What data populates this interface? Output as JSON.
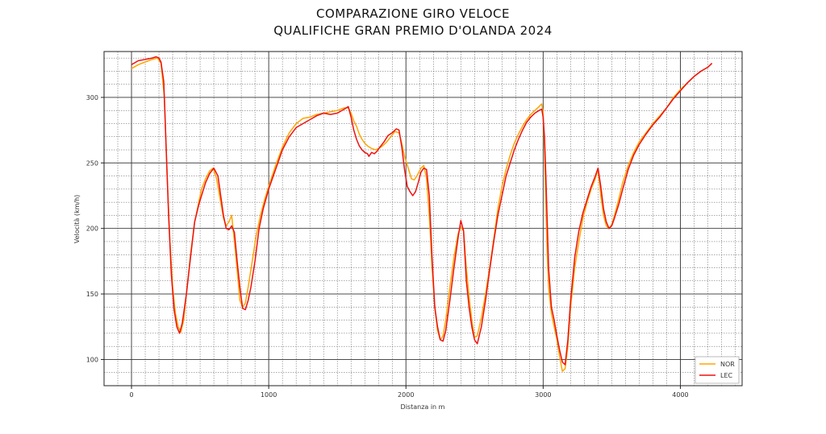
{
  "chart_data": {
    "type": "line",
    "title": "COMPARAZIONE GIRO VELOCE",
    "subtitle": "QUALIFICHE GRAN PREMIO D'OLANDA 2024",
    "xlabel": "Distanza in m",
    "ylabel": "Velocità (km/h)",
    "xlim": [
      -200,
      4450
    ],
    "ylim": [
      80,
      335
    ],
    "xticks": [
      0,
      1000,
      2000,
      3000,
      4000
    ],
    "yticks": [
      100,
      150,
      200,
      250,
      300
    ],
    "grid": true,
    "legend_position": "bottom-right",
    "series": [
      {
        "name": "NOR",
        "color": "#FFA500",
        "points": [
          [
            0,
            322
          ],
          [
            50,
            325
          ],
          [
            100,
            327
          ],
          [
            150,
            329
          ],
          [
            190,
            330
          ],
          [
            215,
            326
          ],
          [
            240,
            300
          ],
          [
            260,
            240
          ],
          [
            280,
            190
          ],
          [
            300,
            155
          ],
          [
            320,
            135
          ],
          [
            340,
            125
          ],
          [
            360,
            121
          ],
          [
            380,
            130
          ],
          [
            400,
            150
          ],
          [
            430,
            180
          ],
          [
            460,
            205
          ],
          [
            490,
            220
          ],
          [
            510,
            230
          ],
          [
            540,
            238
          ],
          [
            570,
            244
          ],
          [
            595,
            246
          ],
          [
            620,
            238
          ],
          [
            650,
            220
          ],
          [
            670,
            208
          ],
          [
            690,
            202
          ],
          [
            710,
            205
          ],
          [
            730,
            210
          ],
          [
            750,
            190
          ],
          [
            770,
            168
          ],
          [
            790,
            145
          ],
          [
            810,
            140
          ],
          [
            830,
            143
          ],
          [
            850,
            155
          ],
          [
            880,
            175
          ],
          [
            910,
            195
          ],
          [
            940,
            210
          ],
          [
            970,
            222
          ],
          [
            1000,
            232
          ],
          [
            1050,
            248
          ],
          [
            1100,
            262
          ],
          [
            1150,
            273
          ],
          [
            1200,
            280
          ],
          [
            1250,
            284
          ],
          [
            1300,
            285
          ],
          [
            1350,
            287
          ],
          [
            1400,
            288
          ],
          [
            1450,
            289
          ],
          [
            1500,
            290
          ],
          [
            1550,
            292
          ],
          [
            1580,
            292
          ],
          [
            1600,
            288
          ],
          [
            1620,
            282
          ],
          [
            1640,
            278
          ],
          [
            1660,
            272
          ],
          [
            1680,
            268
          ],
          [
            1700,
            265
          ],
          [
            1720,
            263
          ],
          [
            1750,
            261
          ],
          [
            1780,
            260
          ],
          [
            1800,
            261
          ],
          [
            1830,
            263
          ],
          [
            1860,
            266
          ],
          [
            1890,
            270
          ],
          [
            1920,
            274
          ],
          [
            1950,
            273
          ],
          [
            1970,
            265
          ],
          [
            1990,
            255
          ],
          [
            2020,
            245
          ],
          [
            2040,
            238
          ],
          [
            2060,
            237
          ],
          [
            2080,
            240
          ],
          [
            2110,
            246
          ],
          [
            2130,
            248
          ],
          [
            2150,
            238
          ],
          [
            2170,
            210
          ],
          [
            2190,
            170
          ],
          [
            2210,
            140
          ],
          [
            2230,
            122
          ],
          [
            2250,
            115
          ],
          [
            2270,
            118
          ],
          [
            2290,
            130
          ],
          [
            2320,
            155
          ],
          [
            2350,
            178
          ],
          [
            2380,
            196
          ],
          [
            2400,
            201
          ],
          [
            2420,
            198
          ],
          [
            2440,
            170
          ],
          [
            2460,
            148
          ],
          [
            2480,
            130
          ],
          [
            2500,
            117
          ],
          [
            2520,
            118
          ],
          [
            2550,
            132
          ],
          [
            2580,
            150
          ],
          [
            2610,
            170
          ],
          [
            2640,
            192
          ],
          [
            2670,
            215
          ],
          [
            2700,
            232
          ],
          [
            2730,
            245
          ],
          [
            2760,
            256
          ],
          [
            2790,
            265
          ],
          [
            2820,
            272
          ],
          [
            2850,
            278
          ],
          [
            2880,
            283
          ],
          [
            2910,
            287
          ],
          [
            2940,
            290
          ],
          [
            2970,
            293
          ],
          [
            2990,
            295
          ],
          [
            3000,
            288
          ],
          [
            3010,
            260
          ],
          [
            3020,
            220
          ],
          [
            3030,
            180
          ],
          [
            3040,
            155
          ],
          [
            3060,
            135
          ],
          [
            3080,
            125
          ],
          [
            3100,
            115
          ],
          [
            3120,
            102
          ],
          [
            3140,
            91
          ],
          [
            3160,
            93
          ],
          [
            3180,
            110
          ],
          [
            3200,
            140
          ],
          [
            3230,
            170
          ],
          [
            3260,
            190
          ],
          [
            3290,
            208
          ],
          [
            3320,
            220
          ],
          [
            3350,
            230
          ],
          [
            3380,
            238
          ],
          [
            3400,
            245
          ],
          [
            3420,
            225
          ],
          [
            3440,
            210
          ],
          [
            3460,
            202
          ],
          [
            3480,
            200
          ],
          [
            3500,
            203
          ],
          [
            3520,
            210
          ],
          [
            3550,
            222
          ],
          [
            3580,
            235
          ],
          [
            3620,
            248
          ],
          [
            3660,
            258
          ],
          [
            3700,
            266
          ],
          [
            3750,
            273
          ],
          [
            3800,
            280
          ],
          [
            3850,
            286
          ],
          [
            3900,
            292
          ],
          [
            3950,
            300
          ],
          [
            4000,
            306
          ],
          [
            4050,
            311
          ],
          [
            4100,
            316
          ],
          [
            4150,
            320
          ],
          [
            4200,
            323
          ],
          [
            4230,
            326
          ]
        ]
      },
      {
        "name": "LEC",
        "color": "#EE1111",
        "points": [
          [
            0,
            325
          ],
          [
            50,
            328
          ],
          [
            100,
            329
          ],
          [
            150,
            330
          ],
          [
            180,
            331
          ],
          [
            200,
            330
          ],
          [
            215,
            327
          ],
          [
            235,
            312
          ],
          [
            250,
            270
          ],
          [
            270,
            210
          ],
          [
            290,
            165
          ],
          [
            310,
            138
          ],
          [
            330,
            125
          ],
          [
            350,
            120
          ],
          [
            370,
            128
          ],
          [
            400,
            150
          ],
          [
            430,
            178
          ],
          [
            460,
            205
          ],
          [
            490,
            218
          ],
          [
            510,
            225
          ],
          [
            540,
            235
          ],
          [
            570,
            242
          ],
          [
            600,
            246
          ],
          [
            630,
            240
          ],
          [
            650,
            225
          ],
          [
            670,
            210
          ],
          [
            690,
            200
          ],
          [
            710,
            199
          ],
          [
            730,
            202
          ],
          [
            750,
            197
          ],
          [
            770,
            175
          ],
          [
            790,
            155
          ],
          [
            810,
            139
          ],
          [
            830,
            138
          ],
          [
            850,
            145
          ],
          [
            870,
            155
          ],
          [
            900,
            175
          ],
          [
            930,
            200
          ],
          [
            960,
            215
          ],
          [
            1000,
            230
          ],
          [
            1050,
            245
          ],
          [
            1100,
            260
          ],
          [
            1150,
            270
          ],
          [
            1200,
            277
          ],
          [
            1250,
            280
          ],
          [
            1300,
            283
          ],
          [
            1350,
            286
          ],
          [
            1400,
            288
          ],
          [
            1450,
            287
          ],
          [
            1500,
            288
          ],
          [
            1550,
            291
          ],
          [
            1580,
            293
          ],
          [
            1600,
            285
          ],
          [
            1620,
            275
          ],
          [
            1640,
            268
          ],
          [
            1660,
            263
          ],
          [
            1680,
            260
          ],
          [
            1700,
            258
          ],
          [
            1720,
            257
          ],
          [
            1730,
            255
          ],
          [
            1750,
            258
          ],
          [
            1770,
            257
          ],
          [
            1790,
            259
          ],
          [
            1810,
            262
          ],
          [
            1840,
            266
          ],
          [
            1870,
            271
          ],
          [
            1900,
            273
          ],
          [
            1930,
            276
          ],
          [
            1950,
            275
          ],
          [
            1970,
            262
          ],
          [
            1990,
            245
          ],
          [
            2010,
            232
          ],
          [
            2030,
            228
          ],
          [
            2050,
            225
          ],
          [
            2070,
            228
          ],
          [
            2090,
            235
          ],
          [
            2110,
            243
          ],
          [
            2130,
            246
          ],
          [
            2150,
            245
          ],
          [
            2170,
            225
          ],
          [
            2190,
            178
          ],
          [
            2210,
            140
          ],
          [
            2230,
            125
          ],
          [
            2250,
            115
          ],
          [
            2270,
            114
          ],
          [
            2290,
            122
          ],
          [
            2320,
            145
          ],
          [
            2350,
            170
          ],
          [
            2380,
            193
          ],
          [
            2400,
            206
          ],
          [
            2420,
            198
          ],
          [
            2440,
            160
          ],
          [
            2460,
            140
          ],
          [
            2480,
            125
          ],
          [
            2500,
            115
          ],
          [
            2520,
            112
          ],
          [
            2550,
            125
          ],
          [
            2580,
            145
          ],
          [
            2610,
            168
          ],
          [
            2640,
            190
          ],
          [
            2670,
            210
          ],
          [
            2700,
            225
          ],
          [
            2730,
            240
          ],
          [
            2760,
            250
          ],
          [
            2790,
            260
          ],
          [
            2820,
            268
          ],
          [
            2850,
            275
          ],
          [
            2880,
            281
          ],
          [
            2910,
            285
          ],
          [
            2940,
            288
          ],
          [
            2970,
            290
          ],
          [
            2990,
            291
          ],
          [
            3000,
            285
          ],
          [
            3010,
            270
          ],
          [
            3020,
            240
          ],
          [
            3030,
            205
          ],
          [
            3040,
            170
          ],
          [
            3060,
            140
          ],
          [
            3080,
            130
          ],
          [
            3100,
            118
          ],
          [
            3120,
            107
          ],
          [
            3140,
            98
          ],
          [
            3160,
            96
          ],
          [
            3180,
            115
          ],
          [
            3200,
            145
          ],
          [
            3230,
            178
          ],
          [
            3260,
            198
          ],
          [
            3290,
            212
          ],
          [
            3320,
            222
          ],
          [
            3350,
            232
          ],
          [
            3380,
            240
          ],
          [
            3400,
            246
          ],
          [
            3420,
            232
          ],
          [
            3440,
            215
          ],
          [
            3460,
            205
          ],
          [
            3480,
            200
          ],
          [
            3500,
            202
          ],
          [
            3520,
            208
          ],
          [
            3550,
            218
          ],
          [
            3580,
            230
          ],
          [
            3620,
            245
          ],
          [
            3660,
            256
          ],
          [
            3700,
            264
          ],
          [
            3750,
            272
          ],
          [
            3800,
            279
          ],
          [
            3850,
            285
          ],
          [
            3900,
            292
          ],
          [
            3950,
            299
          ],
          [
            4000,
            305
          ],
          [
            4050,
            311
          ],
          [
            4100,
            316
          ],
          [
            4150,
            320
          ],
          [
            4200,
            323
          ],
          [
            4230,
            326
          ]
        ]
      }
    ]
  }
}
